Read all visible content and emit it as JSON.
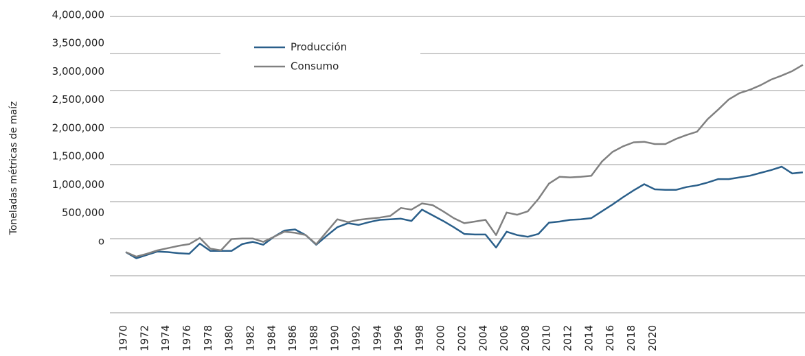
{
  "chart_data": {
    "type": "line",
    "ylabel": "Toneladas métricas de maíz",
    "x": [
      1970,
      1971,
      1972,
      1973,
      1974,
      1975,
      1976,
      1977,
      1978,
      1979,
      1980,
      1981,
      1982,
      1983,
      1984,
      1985,
      1986,
      1987,
      1988,
      1989,
      1990,
      1991,
      1992,
      1993,
      1994,
      1995,
      1996,
      1997,
      1998,
      1999,
      2000,
      2001,
      2002,
      2003,
      2004,
      2005,
      2006,
      2007,
      2008,
      2009,
      2010,
      2011,
      2012,
      2013,
      2014,
      2015,
      2016,
      2017,
      2018,
      2019,
      2020,
      2021,
      2022,
      2023,
      2024,
      2025,
      2026,
      2027,
      2028,
      2029,
      2030,
      2031,
      2032,
      2033,
      2034
    ],
    "series": [
      {
        "name": "Producción",
        "color": "#2a5f8a",
        "values": [
          -190000,
          -300000,
          -240000,
          -180000,
          -190000,
          -210000,
          -220000,
          -40000,
          -170000,
          -170000,
          -170000,
          -50000,
          -10000,
          -60000,
          80000,
          190000,
          210000,
          110000,
          -60000,
          100000,
          250000,
          320000,
          290000,
          340000,
          380000,
          390000,
          400000,
          360000,
          560000,
          460000,
          360000,
          250000,
          130000,
          120000,
          120000,
          -110000,
          170000,
          110000,
          80000,
          130000,
          330000,
          350000,
          380000,
          390000,
          410000,
          530000,
          650000,
          780000,
          900000,
          1010000,
          920000,
          910000,
          910000,
          960000,
          990000,
          1040000,
          1100000,
          1100000,
          1130000,
          1160000,
          1210000,
          1260000,
          1320000,
          1200000,
          1220000
        ]
      },
      {
        "name": "Consumo",
        "color": "#808080",
        "values": [
          -190000,
          -270000,
          -220000,
          -160000,
          -120000,
          -80000,
          -50000,
          60000,
          -130000,
          -160000,
          40000,
          50000,
          50000,
          -10000,
          80000,
          170000,
          150000,
          110000,
          -50000,
          170000,
          390000,
          340000,
          380000,
          400000,
          420000,
          450000,
          590000,
          560000,
          670000,
          640000,
          530000,
          410000,
          320000,
          350000,
          380000,
          110000,
          510000,
          470000,
          530000,
          750000,
          1020000,
          1140000,
          1130000,
          1140000,
          1160000,
          1410000,
          1580000,
          1680000,
          1750000,
          1760000,
          1720000,
          1720000,
          1810000,
          1880000,
          1940000,
          2160000,
          2330000,
          2510000,
          2620000,
          2680000,
          2760000,
          2860000,
          2930000,
          3010000,
          3120000
        ]
      }
    ],
    "xlim": [
      1968.5,
      2034.2
    ],
    "xticks": [
      1970,
      1972,
      1974,
      1976,
      1978,
      1980,
      1982,
      1984,
      1986,
      1988,
      1990,
      1992,
      1994,
      1996,
      1998,
      2000,
      2002,
      2004,
      2006,
      2008,
      2010,
      2012,
      2014,
      2016,
      2018,
      2020
    ],
    "ylim": [
      -1300000,
      4000000
    ],
    "yticks": [
      {
        "value": 0,
        "label": "o"
      },
      {
        "value": 500000,
        "label": "500,000"
      },
      {
        "value": 1000000,
        "label": "1,000,000"
      },
      {
        "value": 1500000,
        "label": "1,500,000"
      },
      {
        "value": 2000000,
        "label": "2,000,000"
      },
      {
        "value": 2500000,
        "label": "2,500,000"
      },
      {
        "value": 3000000,
        "label": "3,000,000"
      },
      {
        "value": 3500000,
        "label": "3,500,000"
      },
      {
        "value": 4000000,
        "label": "4,000,000"
      }
    ]
  }
}
